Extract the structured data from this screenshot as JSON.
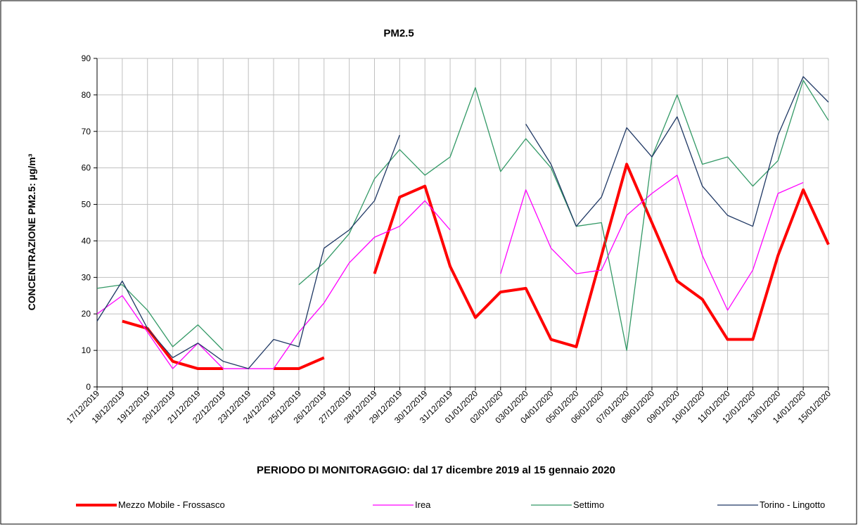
{
  "chart_data": {
    "type": "line",
    "title": "PM2.5",
    "x_label": "PERIODO DI MONITORAGGIO: dal 17 dicembre 2019 al 15 gennaio 2020",
    "y_label": "CONCENTRAZIONE PM2.5: µg/m³",
    "categories": [
      "17/12/2019",
      "18/12/2019",
      "19/12/2019",
      "20/12/2019",
      "21/12/2019",
      "22/12/2019",
      "23/12/2019",
      "24/12/2019",
      "25/12/2019",
      "26/12/2019",
      "27/12/2019",
      "28/12/2019",
      "29/12/2019",
      "30/12/2019",
      "31/12/2019",
      "01/01/2020",
      "02/01/2020",
      "03/01/2020",
      "04/01/2020",
      "05/01/2020",
      "06/01/2020",
      "07/01/2020",
      "08/01/2020",
      "09/01/2020",
      "10/01/2020",
      "11/01/2020",
      "12/01/2020",
      "13/01/2020",
      "14/01/2020",
      "15/01/2020"
    ],
    "series": [
      {
        "name": "Mezzo Mobile - Frossasco",
        "color": "#ff0000",
        "width": 4,
        "values": [
          null,
          18,
          16,
          7,
          5,
          5,
          null,
          5,
          5,
          8,
          null,
          31,
          52,
          55,
          33,
          19,
          26,
          27,
          13,
          11,
          36,
          61,
          45,
          29,
          24,
          13,
          13,
          36,
          54,
          39
        ]
      },
      {
        "name": "Irea",
        "color": "#ff00ff",
        "width": 1.3,
        "values": [
          20,
          25,
          15,
          5,
          12,
          5,
          5,
          5,
          15,
          23,
          34,
          41,
          44,
          51,
          43,
          null,
          31,
          54,
          38,
          31,
          32,
          47,
          53,
          58,
          36,
          21,
          32,
          53,
          56,
          null
        ]
      },
      {
        "name": "Settimo",
        "color": "#339966",
        "width": 1.3,
        "values": [
          27,
          28,
          21,
          11,
          17,
          10,
          null,
          null,
          28,
          34,
          42,
          57,
          65,
          58,
          63,
          82,
          59,
          68,
          60,
          44,
          45,
          10,
          63,
          80,
          61,
          63,
          55,
          62,
          84,
          73
        ]
      },
      {
        "name": "Torino - Lingotto",
        "color": "#1f3864",
        "width": 1.3,
        "values": [
          18,
          29,
          16,
          8,
          12,
          7,
          5,
          13,
          11,
          38,
          43,
          51,
          69,
          null,
          null,
          null,
          null,
          72,
          61,
          44,
          52,
          71,
          63,
          74,
          55,
          47,
          44,
          69,
          85,
          78
        ]
      }
    ],
    "ylim": [
      0,
      90
    ],
    "yticks": [
      0,
      10,
      20,
      30,
      40,
      50,
      60,
      70,
      80,
      90
    ],
    "grid": true,
    "legend": "bottom"
  }
}
